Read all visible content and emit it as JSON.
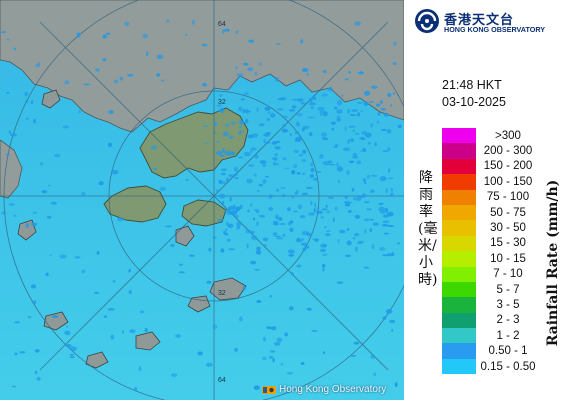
{
  "legend": {
    "time": "21:48 HKT",
    "date": "03-10-2025",
    "title_zh": "降雨率(毫米/小時)",
    "title_en": "Rainfall Rate (mm/h)",
    "scale": [
      {
        "label": ">300",
        "color": "#ee00ee"
      },
      {
        "label": "200 - 300",
        "color": "#cc0088"
      },
      {
        "label": "150 - 200",
        "color": "#e3003a"
      },
      {
        "label": "100 - 150",
        "color": "#f03c00"
      },
      {
        "label": "75 - 100",
        "color": "#f08000"
      },
      {
        "label": "50 - 75",
        "color": "#f0a800"
      },
      {
        "label": "30 - 50",
        "color": "#e8c000"
      },
      {
        "label": "15 - 30",
        "color": "#d8d800"
      },
      {
        "label": "10 - 15",
        "color": "#b6ee00"
      },
      {
        "label": "7 - 10",
        "color": "#80f000"
      },
      {
        "label": "5 - 7",
        "color": "#3cd800"
      },
      {
        "label": "3 - 5",
        "color": "#1ab43c"
      },
      {
        "label": "2 - 3",
        "color": "#10a070"
      },
      {
        "label": "1 - 2",
        "color": "#32c8c8"
      },
      {
        "label": "0.50 - 1",
        "color": "#2a9cf0"
      },
      {
        "label": "0.15 - 0.50",
        "color": "#22c8f8"
      }
    ]
  },
  "logo": {
    "name_zh": "香港天文台",
    "name_en": "HONG KONG OBSERVATORY"
  },
  "map": {
    "credit": "Hong Kong Observatory",
    "range_labels": [
      "64",
      "32",
      "32",
      "64"
    ],
    "colors": {
      "sea": "#3bc6e8",
      "land": "#8f9a98",
      "echo": "#1f9ae6"
    }
  }
}
